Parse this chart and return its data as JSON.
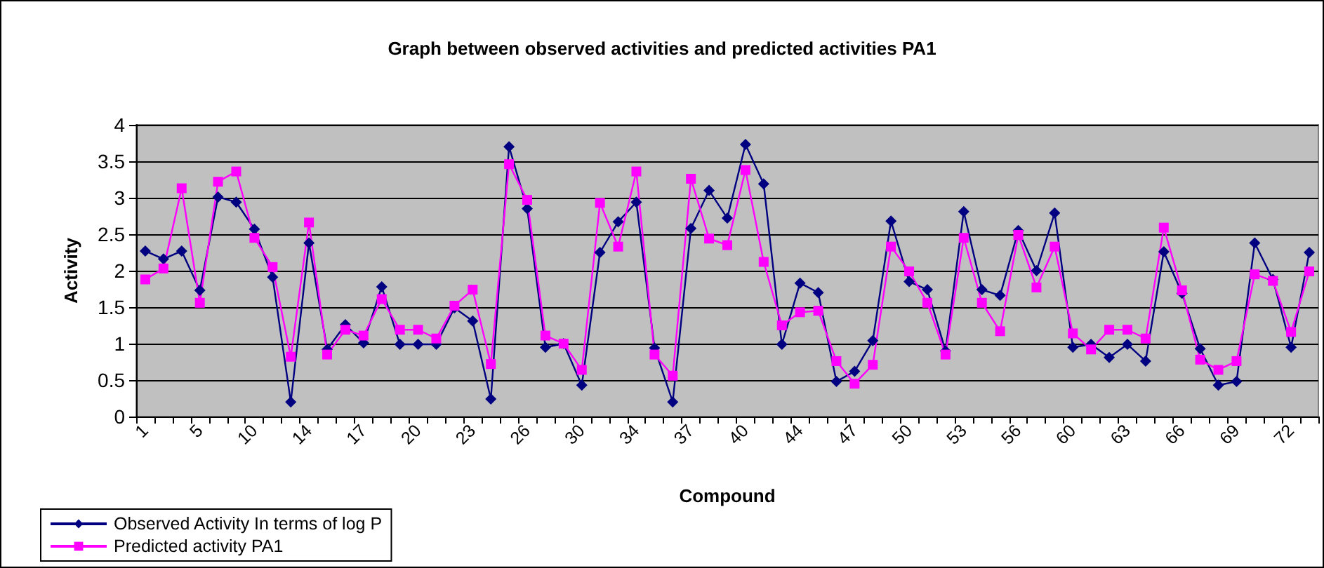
{
  "chart_data": {
    "type": "line",
    "title": "Graph between observed activities and predicted activities PA1",
    "xlabel": "Compound",
    "ylabel": "Activity",
    "categories": [
      "1",
      null,
      null,
      "5",
      null,
      null,
      "10",
      null,
      null,
      "14",
      null,
      null,
      "17",
      null,
      null,
      "20",
      null,
      null,
      "23",
      null,
      null,
      "26",
      null,
      null,
      "30",
      null,
      null,
      "34",
      null,
      null,
      "37",
      null,
      null,
      "40",
      null,
      null,
      "44",
      null,
      null,
      "47",
      null,
      null,
      "50",
      null,
      null,
      "53",
      null,
      null,
      "56",
      null,
      null,
      "60",
      null,
      null,
      "63",
      null,
      null,
      "66",
      null,
      null,
      "69",
      null,
      null,
      "72",
      null
    ],
    "series": [
      {
        "name": "Observed Activity In terms of log P",
        "color": "#000080",
        "marker": "diamond",
        "values": [
          2.27,
          2.16,
          2.27,
          1.73,
          3.01,
          2.94,
          2.57,
          1.91,
          0.2,
          2.38,
          0.92,
          1.26,
          1.01,
          1.78,
          0.99,
          0.99,
          0.99,
          1.49,
          1.31,
          0.24,
          3.7,
          2.85,
          0.95,
          1.0,
          0.43,
          2.25,
          2.67,
          2.94,
          0.94,
          0.2,
          2.58,
          3.1,
          2.72,
          3.73,
          3.19,
          0.99,
          1.83,
          1.7,
          0.48,
          0.62,
          1.04,
          2.68,
          1.85,
          1.74,
          0.9,
          2.81,
          1.74,
          1.66,
          2.55,
          2.0,
          2.79,
          0.95,
          0.99,
          0.81,
          0.99,
          0.76,
          2.26,
          1.69,
          0.93,
          0.43,
          0.48,
          2.38,
          1.88,
          0.95,
          2.25
        ]
      },
      {
        "name": "Predicted activity PA1",
        "color": "#ff00ff",
        "marker": "square",
        "values": [
          1.88,
          2.03,
          3.13,
          1.56,
          3.22,
          3.36,
          2.45,
          2.05,
          0.82,
          2.66,
          0.85,
          1.19,
          1.11,
          1.61,
          1.19,
          1.19,
          1.07,
          1.52,
          1.74,
          0.72,
          3.46,
          2.97,
          1.11,
          1.0,
          0.64,
          2.93,
          2.33,
          3.36,
          0.85,
          0.56,
          3.26,
          2.44,
          2.35,
          3.38,
          2.12,
          1.25,
          1.43,
          1.45,
          0.76,
          0.45,
          0.71,
          2.33,
          1.99,
          1.56,
          0.85,
          2.45,
          1.56,
          1.17,
          2.49,
          1.77,
          2.33,
          1.14,
          0.92,
          1.19,
          1.19,
          1.07,
          2.59,
          1.73,
          0.78,
          0.64,
          0.76,
          1.95,
          1.86,
          1.16,
          1.99
        ]
      }
    ],
    "ylim": [
      0,
      4
    ],
    "yticks": [
      0,
      0.5,
      1,
      1.5,
      2,
      2.5,
      3,
      3.5,
      4
    ],
    "grid": "y",
    "legend": "bottom left",
    "line_style": "solid"
  }
}
